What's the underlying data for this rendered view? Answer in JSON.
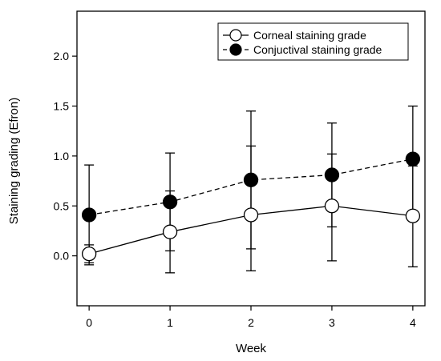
{
  "chart_data": {
    "type": "line",
    "xlabel": "Week",
    "ylabel": "Staining grading (Efron)",
    "x": [
      0,
      1,
      2,
      3,
      4
    ],
    "xlim": [
      -0.15,
      4.15
    ],
    "ylim": [
      -0.5,
      2.45
    ],
    "xticks": [
      "0",
      "1",
      "2",
      "3",
      "4"
    ],
    "yticks": [
      {
        "value": 0.0,
        "label": "0.0"
      },
      {
        "value": 0.5,
        "label": "0.5"
      },
      {
        "value": 1.0,
        "label": "1.0"
      },
      {
        "value": 1.5,
        "label": "1.5"
      },
      {
        "value": 2.0,
        "label": "2.0"
      }
    ],
    "legend_position": "top-right",
    "series": [
      {
        "name": "Corneal staining grade",
        "marker": "open-circle",
        "line": "solid",
        "y": [
          0.02,
          0.24,
          0.41,
          0.5,
          0.4
        ],
        "err_low": [
          -0.07,
          -0.17,
          -0.15,
          -0.05,
          -0.11
        ],
        "err_high": [
          0.11,
          0.65,
          1.1,
          1.02,
          0.9
        ]
      },
      {
        "name": "Conjuctival staining grade",
        "marker": "filled-circle",
        "line": "dashed",
        "y": [
          0.41,
          0.54,
          0.76,
          0.81,
          0.97
        ],
        "err_low": [
          -0.09,
          0.05,
          0.07,
          0.29,
          0.43
        ],
        "err_high": [
          0.91,
          1.03,
          1.45,
          1.33,
          1.5
        ]
      }
    ]
  }
}
